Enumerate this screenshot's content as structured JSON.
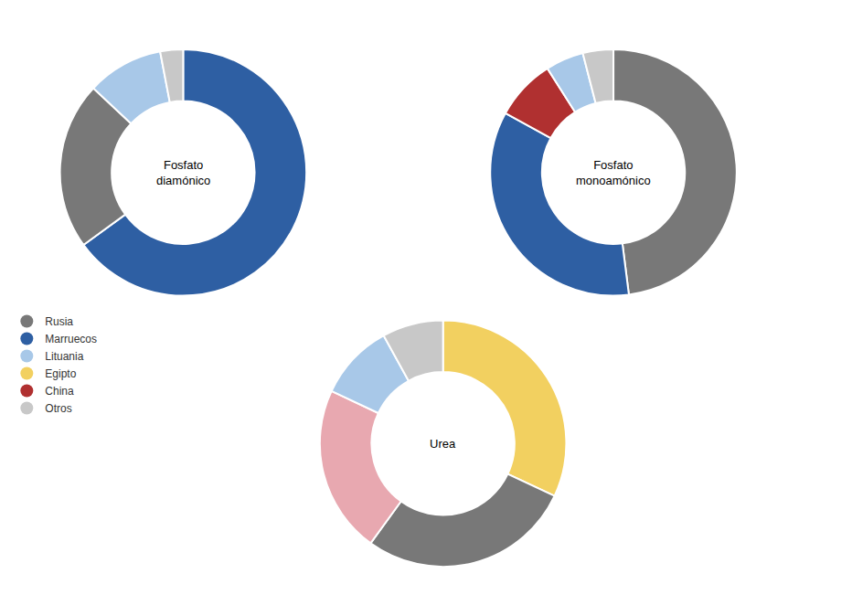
{
  "chart_data": [
    {
      "type": "pie",
      "title": "Fosfato\ndiamónico",
      "values": [
        65,
        22,
        10,
        3
      ],
      "colors": [
        "#2E5FA3",
        "#787878",
        "#A8C8E8",
        "#C8C8C8"
      ]
    },
    {
      "type": "pie",
      "title": "Fosfato\nmonoamónico",
      "values": [
        48,
        35,
        8,
        5,
        4
      ],
      "colors": [
        "#787878",
        "#2E5FA3",
        "#B03030",
        "#A8C8E8",
        "#C8C8C8"
      ]
    },
    {
      "type": "pie",
      "title": "Urea",
      "values": [
        32,
        28,
        22,
        10,
        8
      ],
      "colors": [
        "#F2D060",
        "#787878",
        "#E8A8B0",
        "#A8C8E8",
        "#C8C8C8"
      ]
    }
  ],
  "legend_items": [
    {
      "name": "Rusia",
      "color": "#787878"
    },
    {
      "name": "Marruecos",
      "color": "#2E5FA3"
    },
    {
      "name": "Lituania",
      "color": "#A8C8E8"
    },
    {
      "name": "Egipto",
      "color": "#F2D060"
    },
    {
      "name": "China",
      "color": "#B03030"
    },
    {
      "name": "Otros",
      "color": "#C8C8C8"
    }
  ]
}
